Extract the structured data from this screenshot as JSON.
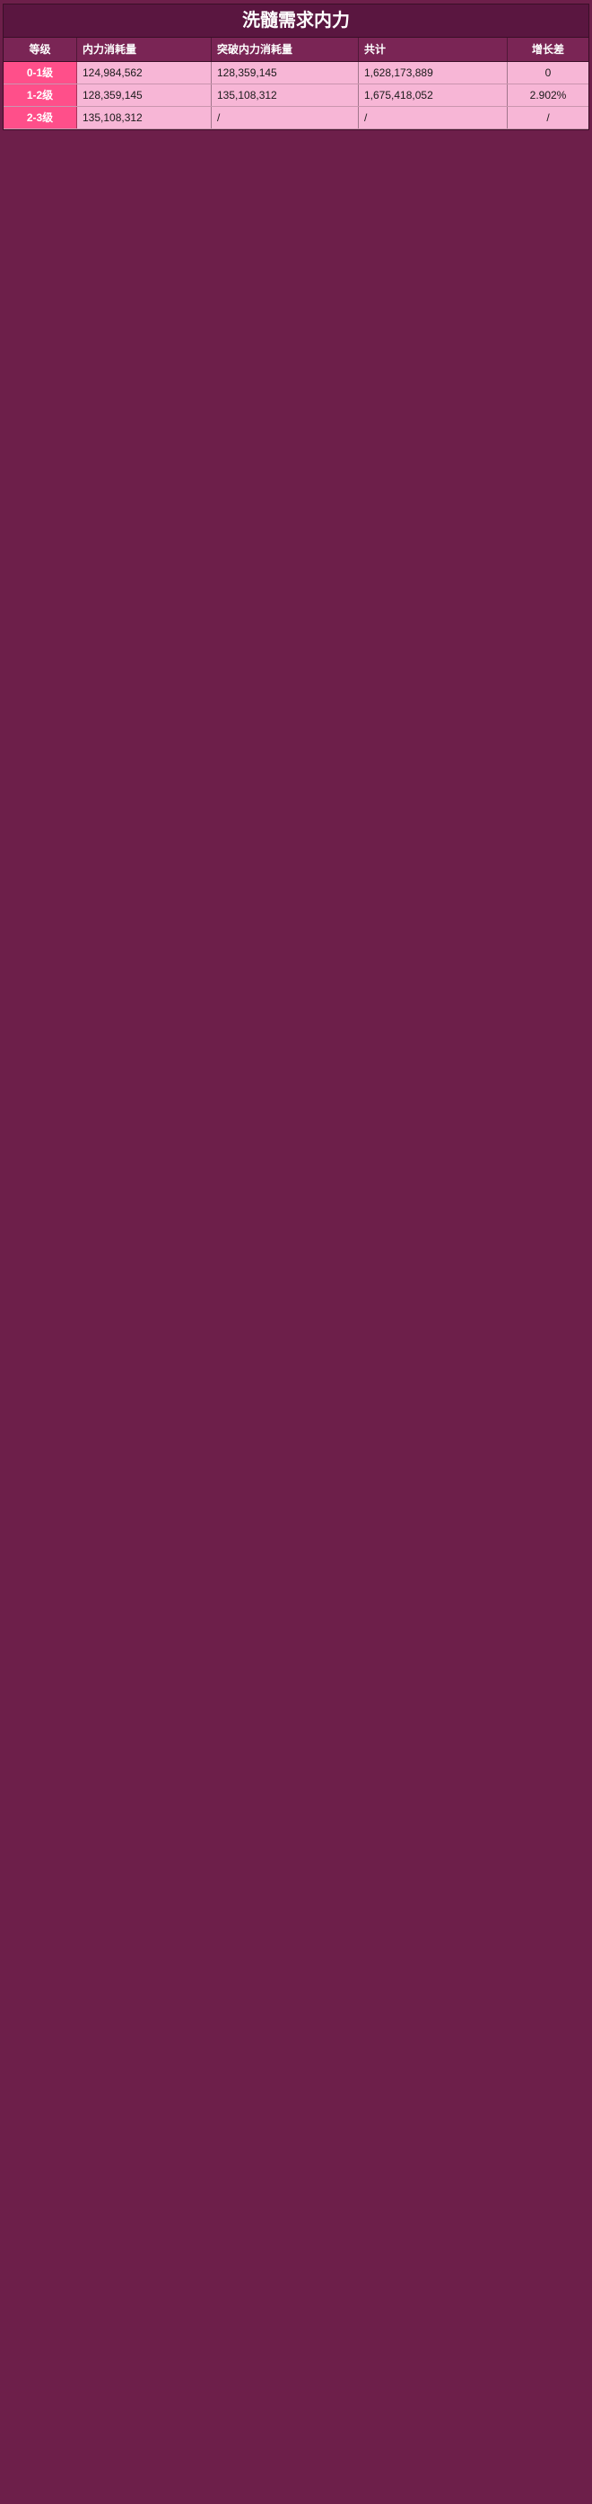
{
  "title": "洗髓需求内力",
  "headers": [
    "等级",
    "内力消耗量",
    "突破内力消耗量",
    "共计",
    "增长差"
  ],
  "rows": [
    {
      "level": "0-1级",
      "a": "124,984,562",
      "b": "128,359,145",
      "total": "1,628,173,889",
      "growth": "0"
    },
    {
      "level": "1-2级",
      "a": "128,359,145",
      "b": "135,108,312",
      "total": "1,675,418,052",
      "growth": "2.902%"
    },
    {
      "level": "2-3级",
      "a": "135,108,312",
      "b": "/",
      "total": "/",
      "growth": "/"
    }
  ]
}
